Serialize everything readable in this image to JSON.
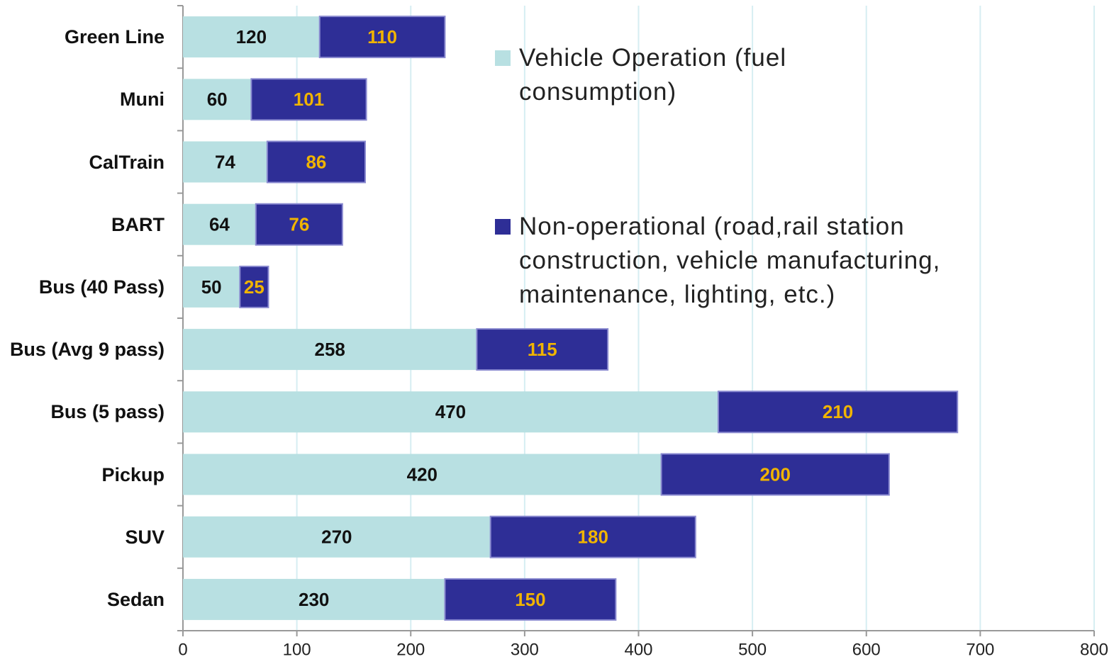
{
  "chart_data": {
    "type": "stacked-bar-horizontal",
    "categories": [
      "Green Line",
      "Muni",
      "CalTrain",
      "BART",
      "Bus (40 Pass)",
      "Bus (Avg 9 pass)",
      "Bus (5 pass)",
      "Pickup",
      "SUV",
      "Sedan"
    ],
    "series": [
      {
        "name": "Vehicle Operation (fuel consumption)",
        "color": "#b8e0e2",
        "label_color": "#111111",
        "values": [
          120,
          60,
          74,
          64,
          50,
          258,
          470,
          420,
          270,
          230
        ]
      },
      {
        "name": "Non-operational (road,rail station construction, vehicle manufacturing, maintenance, lighting, etc.)",
        "color": "#2e2e96",
        "label_color": "#f0b400",
        "values": [
          110,
          101,
          86,
          76,
          25,
          115,
          210,
          200,
          180,
          150
        ]
      }
    ],
    "xlim": [
      0,
      800
    ],
    "xticks": [
      0,
      100,
      200,
      300,
      400,
      500,
      600,
      700,
      800
    ],
    "grid": true
  }
}
